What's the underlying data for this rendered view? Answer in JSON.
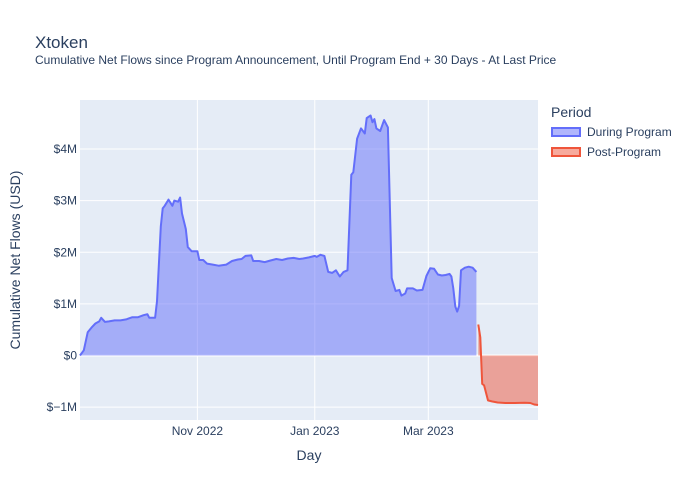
{
  "chart_data": {
    "type": "area",
    "title": "Xtoken",
    "subtitle": "Cumulative Net Flows since Program Announcement, Until Program End + 30 Days - At Last Price",
    "xlabel": "Day",
    "ylabel": "Cumulative Net Flows (USD)",
    "x_range": [
      "2022-09-01",
      "2023-04-27"
    ],
    "ylim": [
      -1250000,
      4950000
    ],
    "x_ticks": [
      {
        "value": "2022-11-01",
        "label": "Nov 2022"
      },
      {
        "value": "2023-01-01",
        "label": "Jan 2023"
      },
      {
        "value": "2023-03-01",
        "label": "Mar 2023"
      }
    ],
    "y_ticks": [
      {
        "value": -1000000,
        "label": "$−1M"
      },
      {
        "value": 0,
        "label": "$0"
      },
      {
        "value": 1000000,
        "label": "$1M"
      },
      {
        "value": 2000000,
        "label": "$2M"
      },
      {
        "value": 3000000,
        "label": "$3M"
      },
      {
        "value": 4000000,
        "label": "$4M"
      }
    ],
    "grid": true,
    "legend_title": "Period",
    "legend_position": "right",
    "series": [
      {
        "name": "During Program",
        "color": "#636efa",
        "fill": "rgba(99,110,250,0.5)",
        "points": [
          [
            "2022-09-01",
            0
          ],
          [
            "2022-09-03",
            100000
          ],
          [
            "2022-09-05",
            450000
          ],
          [
            "2022-09-07",
            540000
          ],
          [
            "2022-09-09",
            620000
          ],
          [
            "2022-09-11",
            660000
          ],
          [
            "2022-09-12",
            730000
          ],
          [
            "2022-09-14",
            650000
          ],
          [
            "2022-09-16",
            660000
          ],
          [
            "2022-09-19",
            680000
          ],
          [
            "2022-09-22",
            680000
          ],
          [
            "2022-09-25",
            700000
          ],
          [
            "2022-09-28",
            740000
          ],
          [
            "2022-10-01",
            740000
          ],
          [
            "2022-10-04",
            780000
          ],
          [
            "2022-10-06",
            800000
          ],
          [
            "2022-10-07",
            730000
          ],
          [
            "2022-10-10",
            730000
          ],
          [
            "2022-10-11",
            1050000
          ],
          [
            "2022-10-13",
            2500000
          ],
          [
            "2022-10-14",
            2850000
          ],
          [
            "2022-10-15",
            2900000
          ],
          [
            "2022-10-17",
            3020000
          ],
          [
            "2022-10-19",
            2900000
          ],
          [
            "2022-10-20",
            3000000
          ],
          [
            "2022-10-22",
            2980000
          ],
          [
            "2022-10-23",
            3060000
          ],
          [
            "2022-10-24",
            2750000
          ],
          [
            "2022-10-26",
            2450000
          ],
          [
            "2022-10-27",
            2100000
          ],
          [
            "2022-10-29",
            2020000
          ],
          [
            "2022-11-01",
            2020000
          ],
          [
            "2022-11-02",
            1850000
          ],
          [
            "2022-11-04",
            1850000
          ],
          [
            "2022-11-06",
            1780000
          ],
          [
            "2022-11-09",
            1760000
          ],
          [
            "2022-11-12",
            1740000
          ],
          [
            "2022-11-16",
            1760000
          ],
          [
            "2022-11-19",
            1830000
          ],
          [
            "2022-11-22",
            1860000
          ],
          [
            "2022-11-24",
            1870000
          ],
          [
            "2022-11-26",
            1930000
          ],
          [
            "2022-11-29",
            1940000
          ],
          [
            "2022-11-30",
            1830000
          ],
          [
            "2022-12-03",
            1830000
          ],
          [
            "2022-12-06",
            1810000
          ],
          [
            "2022-12-09",
            1840000
          ],
          [
            "2022-12-12",
            1870000
          ],
          [
            "2022-12-15",
            1850000
          ],
          [
            "2022-12-18",
            1880000
          ],
          [
            "2022-12-21",
            1890000
          ],
          [
            "2022-12-24",
            1870000
          ],
          [
            "2022-12-26",
            1880000
          ],
          [
            "2022-12-29",
            1900000
          ],
          [
            "2023-01-01",
            1930000
          ],
          [
            "2023-01-02",
            1910000
          ],
          [
            "2023-01-04",
            1950000
          ],
          [
            "2023-01-06",
            1930000
          ],
          [
            "2023-01-08",
            1620000
          ],
          [
            "2023-01-10",
            1600000
          ],
          [
            "2023-01-12",
            1650000
          ],
          [
            "2023-01-14",
            1530000
          ],
          [
            "2023-01-16",
            1620000
          ],
          [
            "2023-01-18",
            1650000
          ],
          [
            "2023-01-20",
            3500000
          ],
          [
            "2023-01-21",
            3550000
          ],
          [
            "2023-01-23",
            4200000
          ],
          [
            "2023-01-25",
            4400000
          ],
          [
            "2023-01-27",
            4300000
          ],
          [
            "2023-01-28",
            4600000
          ],
          [
            "2023-01-30",
            4650000
          ],
          [
            "2023-01-31",
            4520000
          ],
          [
            "2023-02-01",
            4580000
          ],
          [
            "2023-02-02",
            4400000
          ],
          [
            "2023-02-04",
            4350000
          ],
          [
            "2023-02-06",
            4560000
          ],
          [
            "2023-02-08",
            4420000
          ],
          [
            "2023-02-10",
            1500000
          ],
          [
            "2023-02-12",
            1250000
          ],
          [
            "2023-02-14",
            1270000
          ],
          [
            "2023-02-15",
            1160000
          ],
          [
            "2023-02-17",
            1200000
          ],
          [
            "2023-02-18",
            1300000
          ],
          [
            "2023-02-21",
            1300000
          ],
          [
            "2023-02-23",
            1260000
          ],
          [
            "2023-02-26",
            1270000
          ],
          [
            "2023-02-28",
            1540000
          ],
          [
            "2023-03-02",
            1690000
          ],
          [
            "2023-03-04",
            1680000
          ],
          [
            "2023-03-06",
            1570000
          ],
          [
            "2023-03-08",
            1550000
          ],
          [
            "2023-03-10",
            1560000
          ],
          [
            "2023-03-12",
            1580000
          ],
          [
            "2023-03-13",
            1530000
          ],
          [
            "2023-03-14",
            1300000
          ],
          [
            "2023-03-15",
            950000
          ],
          [
            "2023-03-16",
            850000
          ],
          [
            "2023-03-17",
            960000
          ],
          [
            "2023-03-18",
            1650000
          ],
          [
            "2023-03-20",
            1700000
          ],
          [
            "2023-03-22",
            1720000
          ],
          [
            "2023-03-24",
            1700000
          ],
          [
            "2023-03-26",
            1620000
          ]
        ]
      },
      {
        "name": "Post-Program",
        "color": "#ef553b",
        "fill": "rgba(239,85,59,0.5)",
        "points": [
          [
            "2023-03-27",
            600000
          ],
          [
            "2023-03-28",
            350000
          ],
          [
            "2023-03-29",
            -550000
          ],
          [
            "2023-03-30",
            -580000
          ],
          [
            "2023-04-01",
            -870000
          ],
          [
            "2023-04-03",
            -890000
          ],
          [
            "2023-04-06",
            -910000
          ],
          [
            "2023-04-10",
            -920000
          ],
          [
            "2023-04-15",
            -920000
          ],
          [
            "2023-04-20",
            -915000
          ],
          [
            "2023-04-23",
            -920000
          ],
          [
            "2023-04-25",
            -950000
          ],
          [
            "2023-04-27",
            -960000
          ]
        ]
      }
    ]
  }
}
